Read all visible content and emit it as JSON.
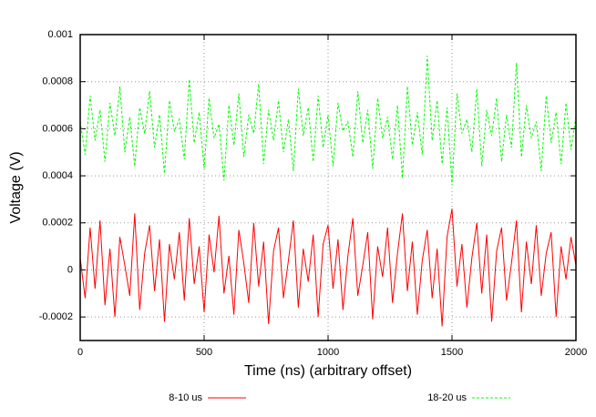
{
  "chart_data": {
    "type": "line",
    "xlabel": "Time (ns) (arbitrary offset)",
    "ylabel": "Voltage (V)",
    "x": [
      0,
      20,
      40,
      60,
      80,
      100,
      120,
      140,
      160,
      180,
      200,
      220,
      240,
      260,
      280,
      300,
      320,
      340,
      360,
      380,
      400,
      420,
      440,
      460,
      480,
      500,
      520,
      540,
      560,
      580,
      600,
      620,
      640,
      660,
      680,
      700,
      720,
      740,
      760,
      780,
      800,
      820,
      840,
      860,
      880,
      900,
      920,
      940,
      960,
      980,
      1000,
      1020,
      1040,
      1060,
      1080,
      1100,
      1120,
      1140,
      1160,
      1180,
      1200,
      1220,
      1240,
      1260,
      1280,
      1300,
      1320,
      1340,
      1360,
      1380,
      1400,
      1420,
      1440,
      1460,
      1480,
      1500,
      1520,
      1540,
      1560,
      1580,
      1600,
      1620,
      1640,
      1660,
      1680,
      1700,
      1720,
      1740,
      1760,
      1780,
      1800,
      1820,
      1840,
      1860,
      1880,
      1900,
      1920,
      1940,
      1960,
      1980,
      2000
    ],
    "series": [
      {
        "name": "8-10 us",
        "color": "#ff0000",
        "dash": false,
        "values": [
          5e-05,
          -0.00012,
          0.00018,
          -8e-05,
          0.00021,
          -0.00015,
          9e-05,
          -0.0002,
          0.00014,
          2e-05,
          -0.00011,
          0.00024,
          -0.00017,
          7e-05,
          0.00019,
          -9e-05,
          0.00013,
          -0.00022,
          0.00011,
          -4e-05,
          0.00016,
          -0.00013,
          0.00022,
          -6e-05,
          0.0001,
          -0.00018,
          0.00015,
          -1e-05,
          0.00023,
          -0.0001,
          6e-05,
          -0.00019,
          0.00017,
          3e-05,
          -0.00014,
          0.0002,
          -7e-05,
          0.00012,
          -0.00023,
          8e-05,
          0.00018,
          -0.00012,
          4e-05,
          0.00021,
          -0.00016,
          9e-05,
          -5e-05,
          0.00015,
          -0.0002,
          0.00011,
          0.00019,
          -8e-05,
          0.00013,
          -0.00017,
          6e-05,
          0.00022,
          -0.00011,
          2e-05,
          0.00016,
          -0.00021,
          0.0001,
          -3e-05,
          0.00018,
          -0.00014,
          7e-05,
          0.00024,
          -9e-05,
          0.00012,
          -0.00019,
          4e-05,
          0.00017,
          -0.00012,
          9e-05,
          -0.00024,
          0.00014,
          0.00026,
          -7e-05,
          0.00011,
          -0.00016,
          5e-05,
          0.0002,
          -0.0001,
          0.00015,
          -0.00022,
          8e-05,
          0.00018,
          -0.00013,
          3e-05,
          0.00021,
          -0.00018,
          0.00012,
          -6e-05,
          0.00019,
          -0.00011,
          7e-05,
          0.00016,
          -0.0002,
          0.0001,
          -4e-05,
          0.00014,
          2e-05
        ]
      },
      {
        "name": "18-20 us",
        "color": "#00ff00",
        "dash": true,
        "values": [
          0.00063,
          0.00049,
          0.00074,
          0.00055,
          0.00068,
          0.00046,
          0.00071,
          0.00057,
          0.00078,
          0.0005,
          0.00065,
          0.00044,
          0.00069,
          0.00058,
          0.00076,
          0.00052,
          0.00066,
          0.00041,
          0.00072,
          0.00059,
          0.00064,
          0.00047,
          0.00081,
          0.00054,
          0.00067,
          0.00043,
          0.00073,
          0.00056,
          0.00062,
          0.00038,
          0.0007,
          0.00053,
          0.00075,
          0.00048,
          0.00066,
          0.00058,
          0.00079,
          0.00045,
          0.00068,
          0.00055,
          0.00072,
          0.0005,
          0.00064,
          0.00042,
          0.00077,
          0.00057,
          0.00069,
          0.00046,
          0.00074,
          0.00052,
          0.00066,
          0.00044,
          0.00071,
          0.00059,
          0.00063,
          0.00048,
          0.00076,
          0.00054,
          0.00068,
          0.00043,
          0.00073,
          0.00056,
          0.00065,
          0.00047,
          0.0007,
          0.00039,
          0.00078,
          0.00053,
          0.00067,
          0.00049,
          0.00091,
          0.00055,
          0.00072,
          0.00045,
          0.00069,
          0.00036,
          0.00075,
          0.00058,
          0.00064,
          0.0005,
          0.00077,
          0.00044,
          0.00068,
          0.00057,
          0.00073,
          0.00046,
          0.00066,
          0.00052,
          0.00088,
          0.00048,
          0.0007,
          0.00056,
          0.00063,
          0.00042,
          0.00074,
          0.00054,
          0.00067,
          0.00045,
          0.00071,
          0.00051,
          0.00065
        ]
      }
    ],
    "xlim": [
      0,
      2000
    ],
    "xticks": [
      0,
      500,
      1000,
      1500,
      2000
    ],
    "ylim": [
      -0.0003,
      0.001
    ],
    "yticks": [
      -0.0002,
      0,
      0.0002,
      0.0004,
      0.0006,
      0.0008,
      0.001
    ],
    "grid": true,
    "legend": "bottom"
  }
}
